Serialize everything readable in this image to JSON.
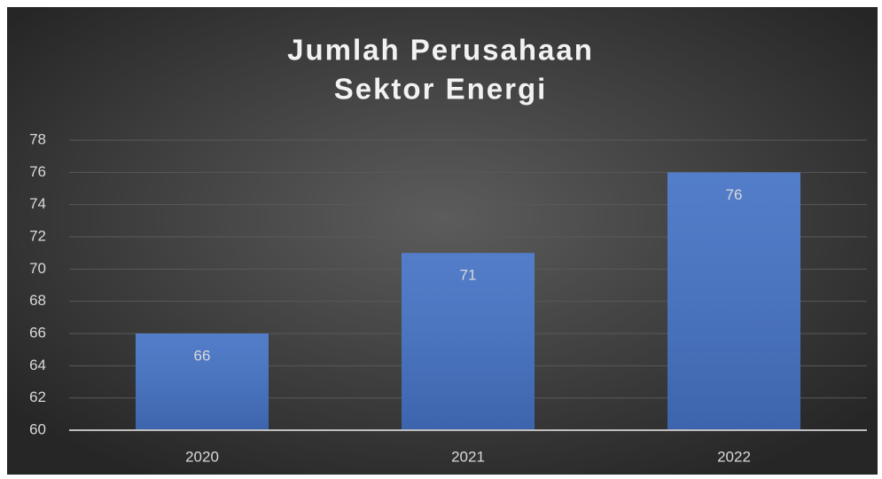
{
  "chart_data": {
    "type": "bar",
    "title": [
      "Jumlah Perusahaan",
      "Sektor Energi"
    ],
    "categories": [
      "2020",
      "2021",
      "2022"
    ],
    "values": [
      66,
      71,
      76
    ],
    "color": "#4472c4",
    "ylim": [
      60,
      78
    ],
    "yticks": [
      60,
      62,
      64,
      66,
      68,
      70,
      72,
      74,
      76,
      78
    ],
    "grid": true
  }
}
